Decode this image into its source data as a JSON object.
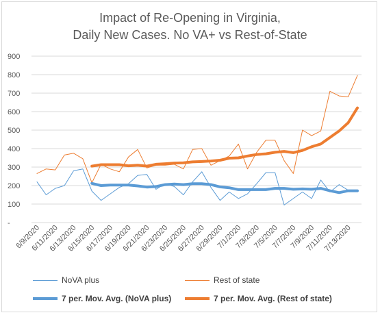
{
  "chart_data": {
    "type": "line",
    "title_lines": [
      "Impact of Re-Opening in Virginia,",
      "Daily New Cases. No VA+ vs Rest-of-State"
    ],
    "y_ticks": [
      "900",
      "800",
      "700",
      "600",
      "500",
      "400",
      "300",
      "200",
      "100",
      "-"
    ],
    "ylim": [
      0,
      900
    ],
    "grid": true,
    "legend_position": "bottom",
    "x": [
      "6/9/2020",
      "6/10/2020",
      "6/11/2020",
      "6/12/2020",
      "6/13/2020",
      "6/14/2020",
      "6/15/2020",
      "6/16/2020",
      "6/17/2020",
      "6/18/2020",
      "6/19/2020",
      "6/20/2020",
      "6/21/2020",
      "6/22/2020",
      "6/23/2020",
      "6/24/2020",
      "6/25/2020",
      "6/26/2020",
      "6/27/2020",
      "6/28/2020",
      "6/29/2020",
      "6/30/2020",
      "7/1/2020",
      "7/2/2020",
      "7/3/2020",
      "7/4/2020",
      "7/5/2020",
      "7/6/2020",
      "7/7/2020",
      "7/8/2020",
      "7/9/2020",
      "7/10/2020",
      "7/11/2020",
      "7/12/2020",
      "7/13/2020",
      "7/14/2020"
    ],
    "x_tick_labels": [
      "6/9/2020",
      "6/11/2020",
      "6/13/2020",
      "6/15/2020",
      "6/17/2020",
      "6/19/2020",
      "6/21/2020",
      "6/23/2020",
      "6/25/2020",
      "6/27/2020",
      "6/29/2020",
      "7/1/2020",
      "7/3/2020",
      "7/5/2020",
      "7/7/2020",
      "7/9/2020",
      "7/11/2020",
      "7/13/2020"
    ],
    "series": [
      {
        "name": "NoVA plus",
        "color": "#5b9bd5",
        "width": 1,
        "values": [
          220,
          150,
          185,
          200,
          280,
          290,
          170,
          120,
          155,
          190,
          210,
          255,
          260,
          180,
          210,
          195,
          150,
          220,
          275,
          190,
          120,
          165,
          130,
          155,
          210,
          270,
          270,
          95,
          130,
          165,
          130,
          230,
          165,
          205,
          175,
          175
        ]
      },
      {
        "name": "Rest of state",
        "color": "#ed7d31",
        "width": 1,
        "values": [
          265,
          290,
          285,
          365,
          375,
          345,
          215,
          315,
          290,
          275,
          355,
          395,
          295,
          310,
          310,
          315,
          290,
          395,
          400,
          310,
          335,
          360,
          425,
          290,
          380,
          445,
          445,
          335,
          265,
          500,
          470,
          495,
          710,
          685,
          680,
          795
        ]
      },
      {
        "name": "7 per. Mov. Avg. (NoVA plus)",
        "color": "#5b9bd5",
        "width": 4,
        "values": [
          null,
          null,
          null,
          null,
          null,
          null,
          212,
          200,
          203,
          203,
          203,
          198,
          192,
          195,
          205,
          208,
          205,
          210,
          210,
          205,
          193,
          188,
          178,
          178,
          178,
          178,
          185,
          185,
          180,
          182,
          180,
          185,
          172,
          162,
          172,
          172
        ]
      },
      {
        "name": "7 per. Mov. Avg. (Rest of state)",
        "color": "#ed7d31",
        "width": 4,
        "values": [
          null,
          null,
          null,
          null,
          null,
          null,
          305,
          313,
          313,
          313,
          307,
          310,
          305,
          315,
          318,
          322,
          323,
          328,
          330,
          333,
          337,
          348,
          350,
          360,
          368,
          372,
          380,
          385,
          378,
          390,
          410,
          425,
          460,
          495,
          540,
          620
        ]
      }
    ]
  }
}
